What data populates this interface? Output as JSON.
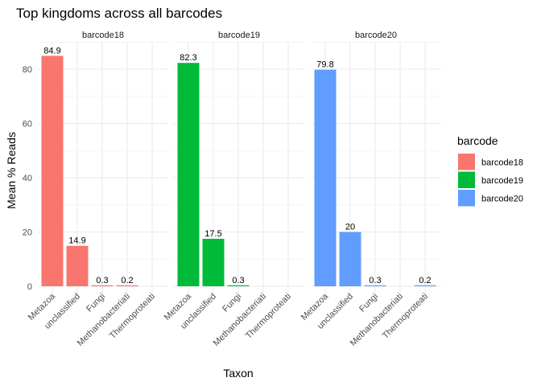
{
  "chart_data": {
    "type": "bar",
    "title": "Top kingdoms across all barcodes",
    "xlabel": "Taxon",
    "ylabel": "Mean % Reads",
    "ylim": [
      0,
      90
    ],
    "yticks": [
      0,
      20,
      40,
      60,
      80
    ],
    "grid": true,
    "categories": [
      "Metazoa",
      "unclassified",
      "Fungi",
      "Methanobacteriati",
      "Thermoproteati"
    ],
    "facets": [
      {
        "name": "barcode18",
        "color": "#F8766D",
        "values": [
          84.9,
          14.9,
          0.3,
          0.2,
          null
        ],
        "labels": [
          "84.9",
          "14.9",
          "0.3",
          "0.2",
          null
        ]
      },
      {
        "name": "barcode19",
        "color": "#00BA38",
        "values": [
          82.3,
          17.5,
          0.3,
          null,
          null
        ],
        "labels": [
          "82.3",
          "17.5",
          "0.3",
          null,
          null
        ]
      },
      {
        "name": "barcode20",
        "color": "#619CFF",
        "values": [
          79.8,
          20,
          0.3,
          null,
          0.2
        ],
        "labels": [
          "79.8",
          "20",
          "0.3",
          null,
          "0.2"
        ]
      }
    ],
    "legend": {
      "title": "barcode",
      "position": "right",
      "entries": [
        "barcode18",
        "barcode19",
        "barcode20"
      ]
    }
  }
}
